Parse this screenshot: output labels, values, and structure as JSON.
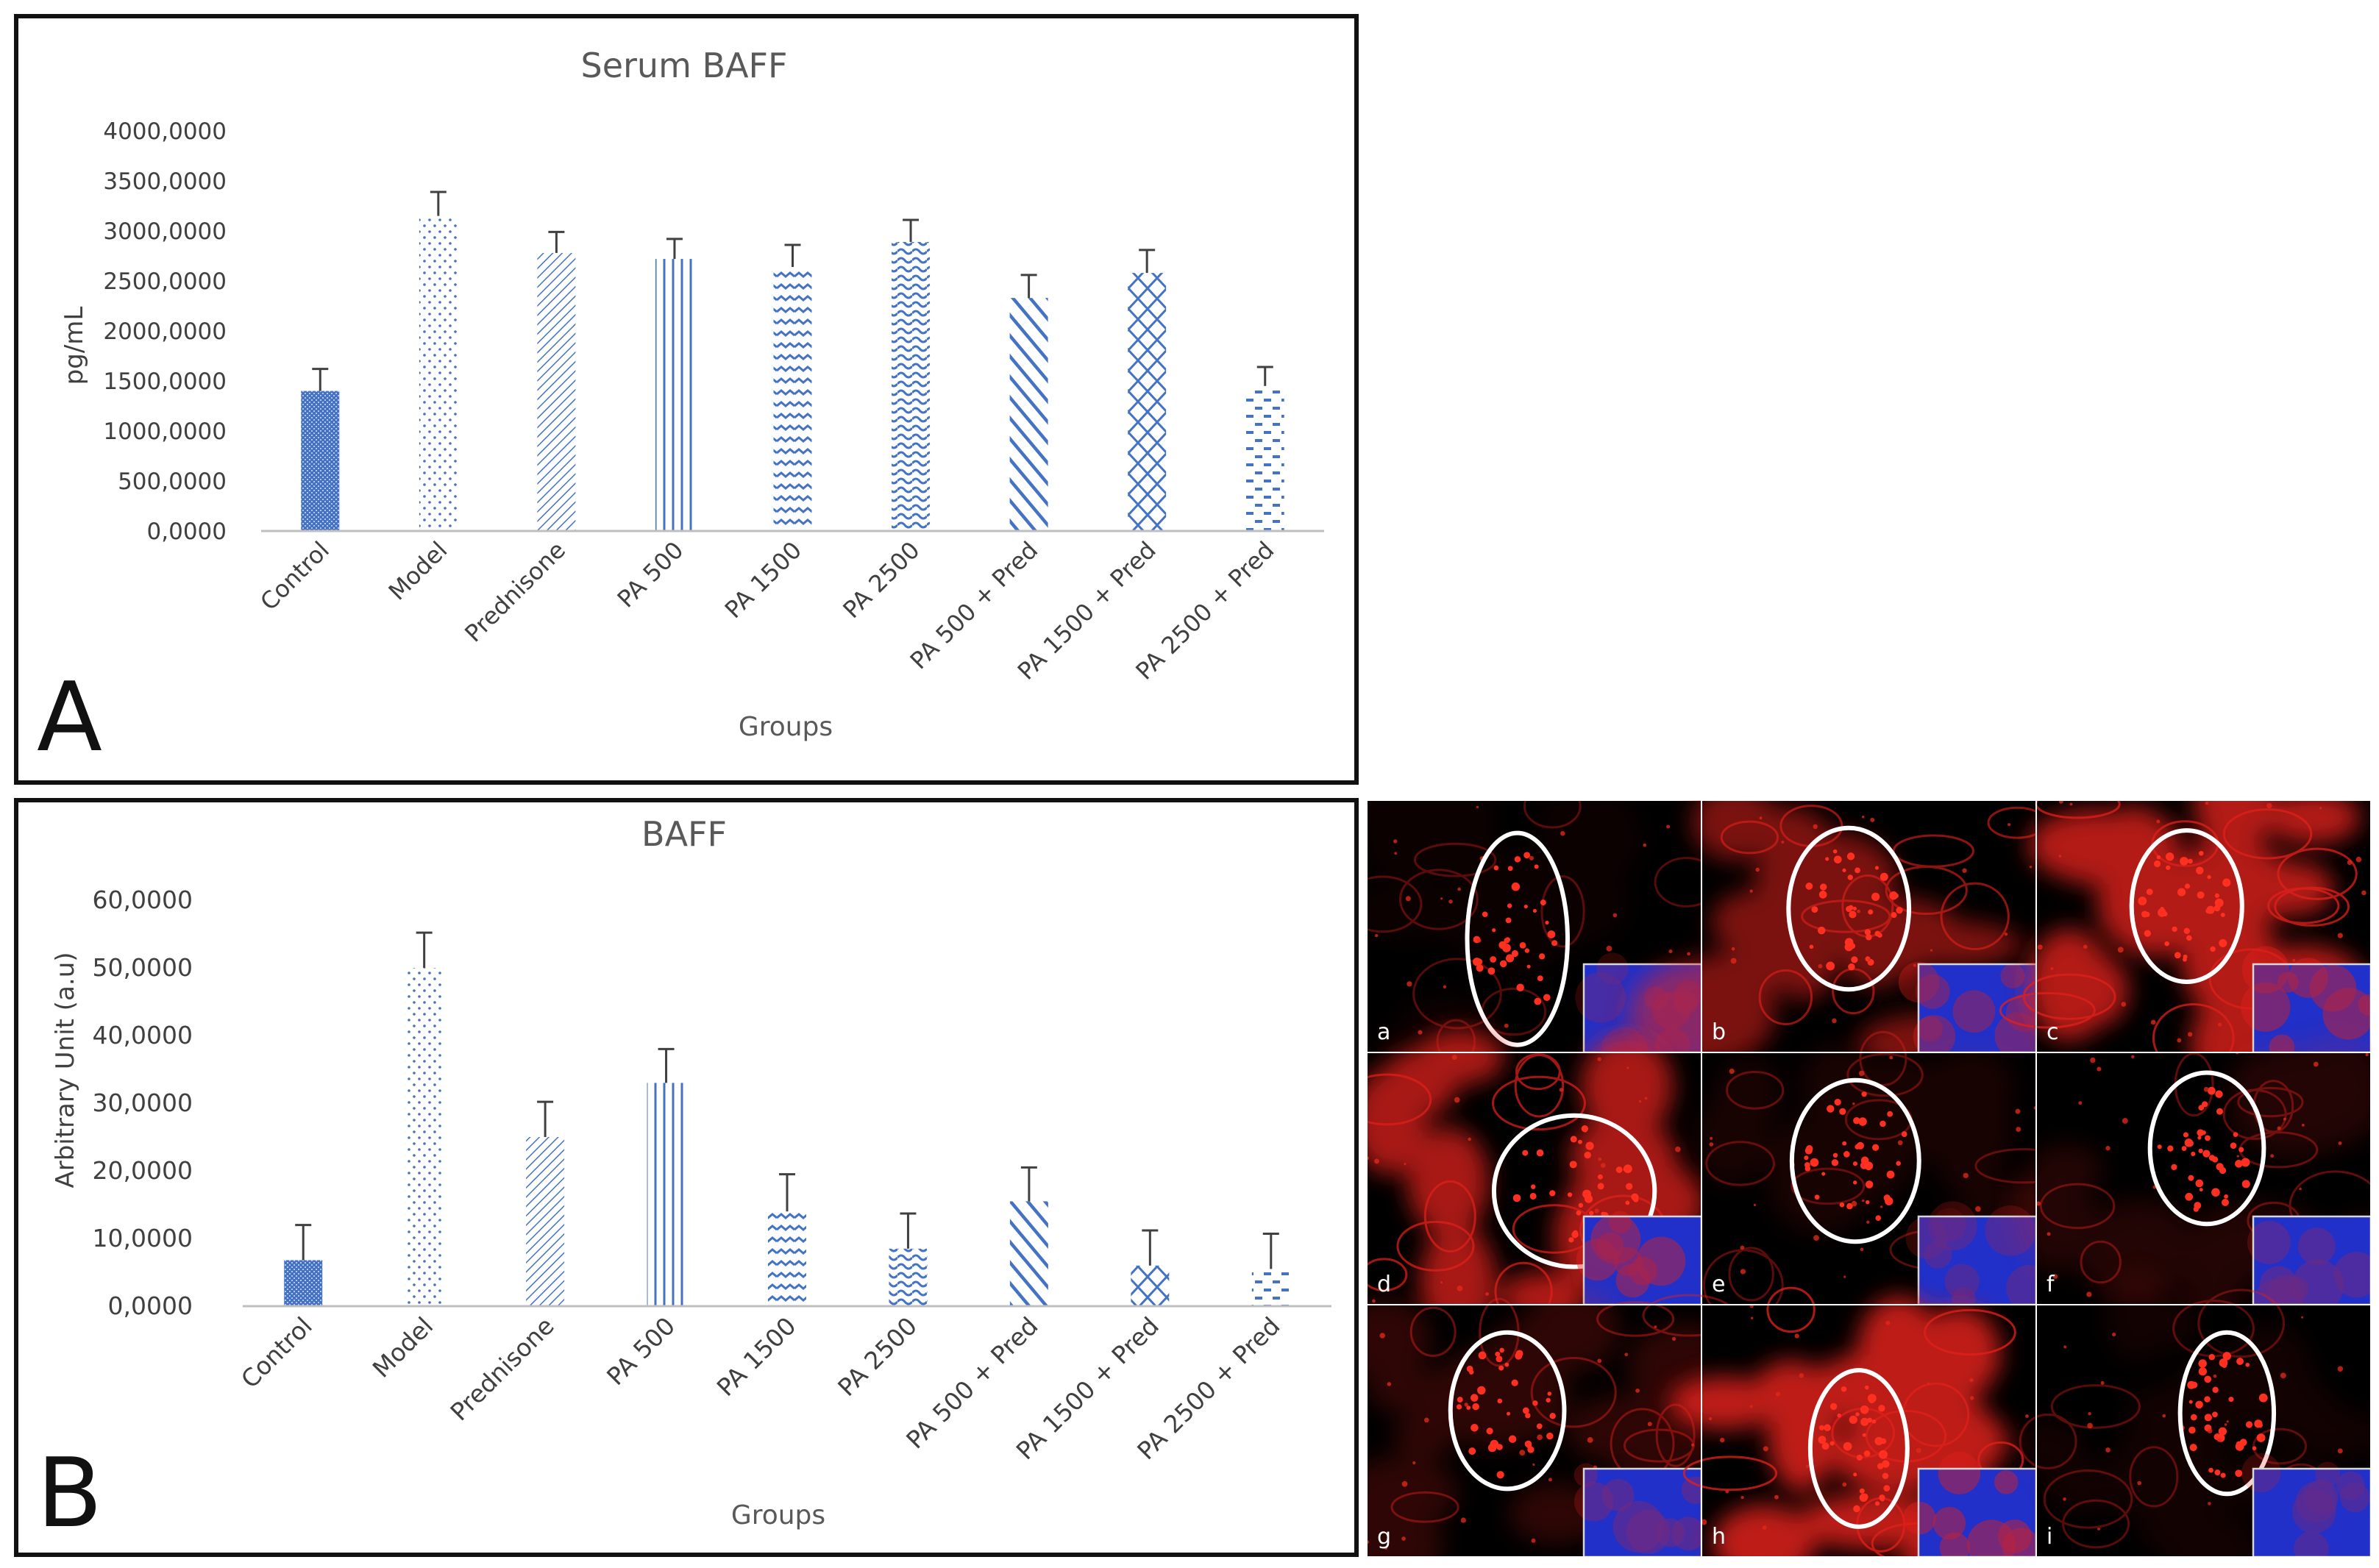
{
  "panel_labels": {
    "a": "A",
    "b": "B"
  },
  "chart_data": [
    {
      "id": "serum-baff",
      "type": "bar",
      "title": "Serum BAFF",
      "xlabel": "Groups",
      "ylabel": "pg/mL",
      "ylim": [
        0,
        4000
      ],
      "yticks": [
        "0,0000",
        "500,0000",
        "1000,0000",
        "1500,0000",
        "2000,0000",
        "2500,0000",
        "3000,0000",
        "3500,0000",
        "4000,0000"
      ],
      "categories": [
        "Control",
        "Model",
        "Prednisone",
        "PA 500",
        "PA 1500",
        "PA 2500",
        "PA 500 + Pred",
        "PA 1500 + Pred",
        "PA 2500 + Pred"
      ],
      "values": [
        1400,
        3150,
        2780,
        2720,
        2640,
        2890,
        2330,
        2580,
        1450
      ],
      "errors": [
        220,
        240,
        210,
        200,
        220,
        220,
        230,
        230,
        190
      ],
      "color": "#4472c4"
    },
    {
      "id": "baff-au",
      "type": "bar",
      "title": "BAFF",
      "xlabel": "Groups",
      "ylabel": "Arbitrary Unit (a.u)",
      "ylim": [
        0,
        60
      ],
      "yticks": [
        "0,0000",
        "10,0000",
        "20,0000",
        "30,0000",
        "40,0000",
        "50,0000",
        "60,0000"
      ],
      "categories": [
        "Control",
        "Model",
        "Prednisone",
        "PA 500",
        "PA 1500",
        "PA 2500",
        "PA 500 + Pred",
        "PA 1500 + Pred",
        "PA 2500 + Pred"
      ],
      "values": [
        6.8,
        50,
        25,
        33,
        14,
        8.5,
        15.5,
        6,
        5.5
      ],
      "errors": [
        5.2,
        5.2,
        5.2,
        5,
        5.5,
        5.2,
        5,
        5.2,
        5.2
      ],
      "color": "#4472c4"
    }
  ],
  "micrographs": {
    "labels": [
      "a",
      "b",
      "c",
      "d",
      "e",
      "f",
      "g",
      "h",
      "i"
    ],
    "description_colors": {
      "stain": "#e0201a",
      "dapi": "#2030c8",
      "circle": "#ffffff"
    }
  }
}
